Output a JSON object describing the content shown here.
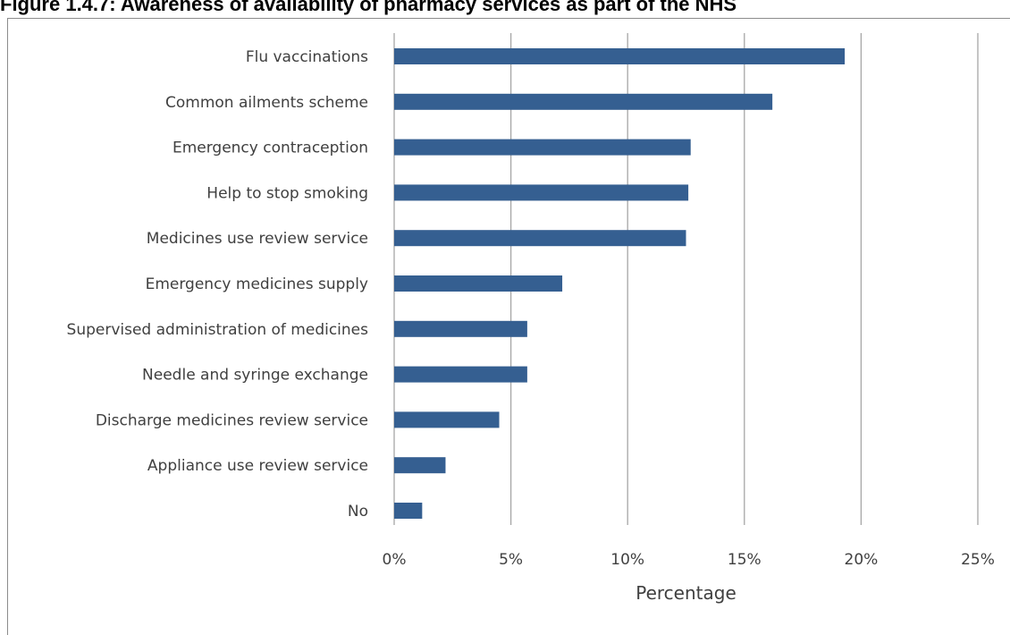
{
  "figure": {
    "title": "Figure 1.4.7: Awareness of availability of pharmacy services as part of the NHS"
  },
  "chart_data": {
    "type": "bar",
    "orientation": "horizontal",
    "title": "Figure 1.4.7: Awareness of availability of pharmacy services as part of the NHS",
    "xlabel": "Percentage",
    "ylabel": "",
    "xlim": [
      0,
      25
    ],
    "x_ticks": [
      "0%",
      "5%",
      "10%",
      "15%",
      "20%",
      "25%"
    ],
    "x_tick_values": [
      0,
      5,
      10,
      15,
      20,
      25
    ],
    "grid": "vertical",
    "legend": "none",
    "bar_color": "#355F91",
    "grid_color": "#A6A6A6",
    "categories": [
      "Flu vaccinations",
      "Common ailments scheme",
      "Emergency contraception",
      "Help to stop smoking",
      "Medicines use review service",
      "Emergency medicines supply",
      "Supervised administration of medicines",
      "Needle and syringe exchange",
      "Discharge medicines review service",
      "Appliance use review service",
      "No"
    ],
    "values": [
      19.3,
      16.2,
      12.7,
      12.6,
      12.5,
      7.2,
      5.7,
      5.7,
      4.5,
      2.2,
      1.2
    ]
  }
}
